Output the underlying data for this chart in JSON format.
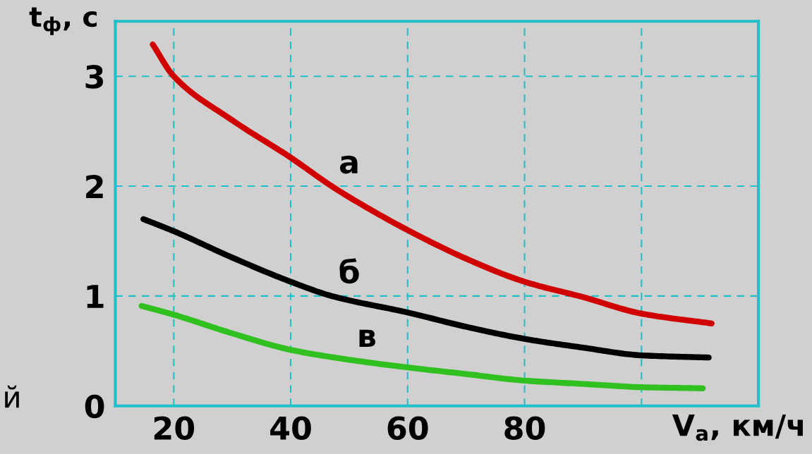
{
  "chart_data": {
    "type": "line",
    "xlabel": "V$_{а}$, км/ч",
    "ylabel": "t$_{ф}$, с",
    "xlim": [
      10,
      120
    ],
    "ylim": [
      0,
      3.5
    ],
    "xticks": [
      20,
      40,
      60,
      80,
      {
        "value": 100,
        "label": null
      }
    ],
    "yticks": [
      0,
      1,
      2,
      3
    ],
    "grid": true,
    "marker": "none",
    "line_style": "solid",
    "series": [
      {
        "name": "а",
        "color": "#d00000",
        "x": [
          16.4,
          20,
          30,
          40,
          47,
          50,
          60,
          70,
          80,
          90,
          100,
          112
        ],
        "values": [
          3.29,
          3.0,
          2.6,
          2.26,
          2.0,
          1.9,
          1.6,
          1.34,
          1.13,
          0.99,
          0.84,
          0.75
        ]
      },
      {
        "name": "б",
        "color": "#000000",
        "x": [
          14.8,
          20,
          30,
          40,
          47,
          60,
          70,
          80,
          90,
          100,
          111.5
        ],
        "values": [
          1.7,
          1.59,
          1.35,
          1.13,
          1.0,
          0.85,
          0.72,
          0.61,
          0.53,
          0.46,
          0.44
        ]
      },
      {
        "name": "в",
        "color": "#30c020",
        "x": [
          14.5,
          20,
          30,
          40,
          50,
          60,
          70,
          80,
          90,
          100,
          110.5
        ],
        "values": [
          0.91,
          0.83,
          0.66,
          0.51,
          0.42,
          0.35,
          0.29,
          0.23,
          0.2,
          0.17,
          0.16
        ]
      }
    ],
    "annotations": [
      "й"
    ]
  }
}
